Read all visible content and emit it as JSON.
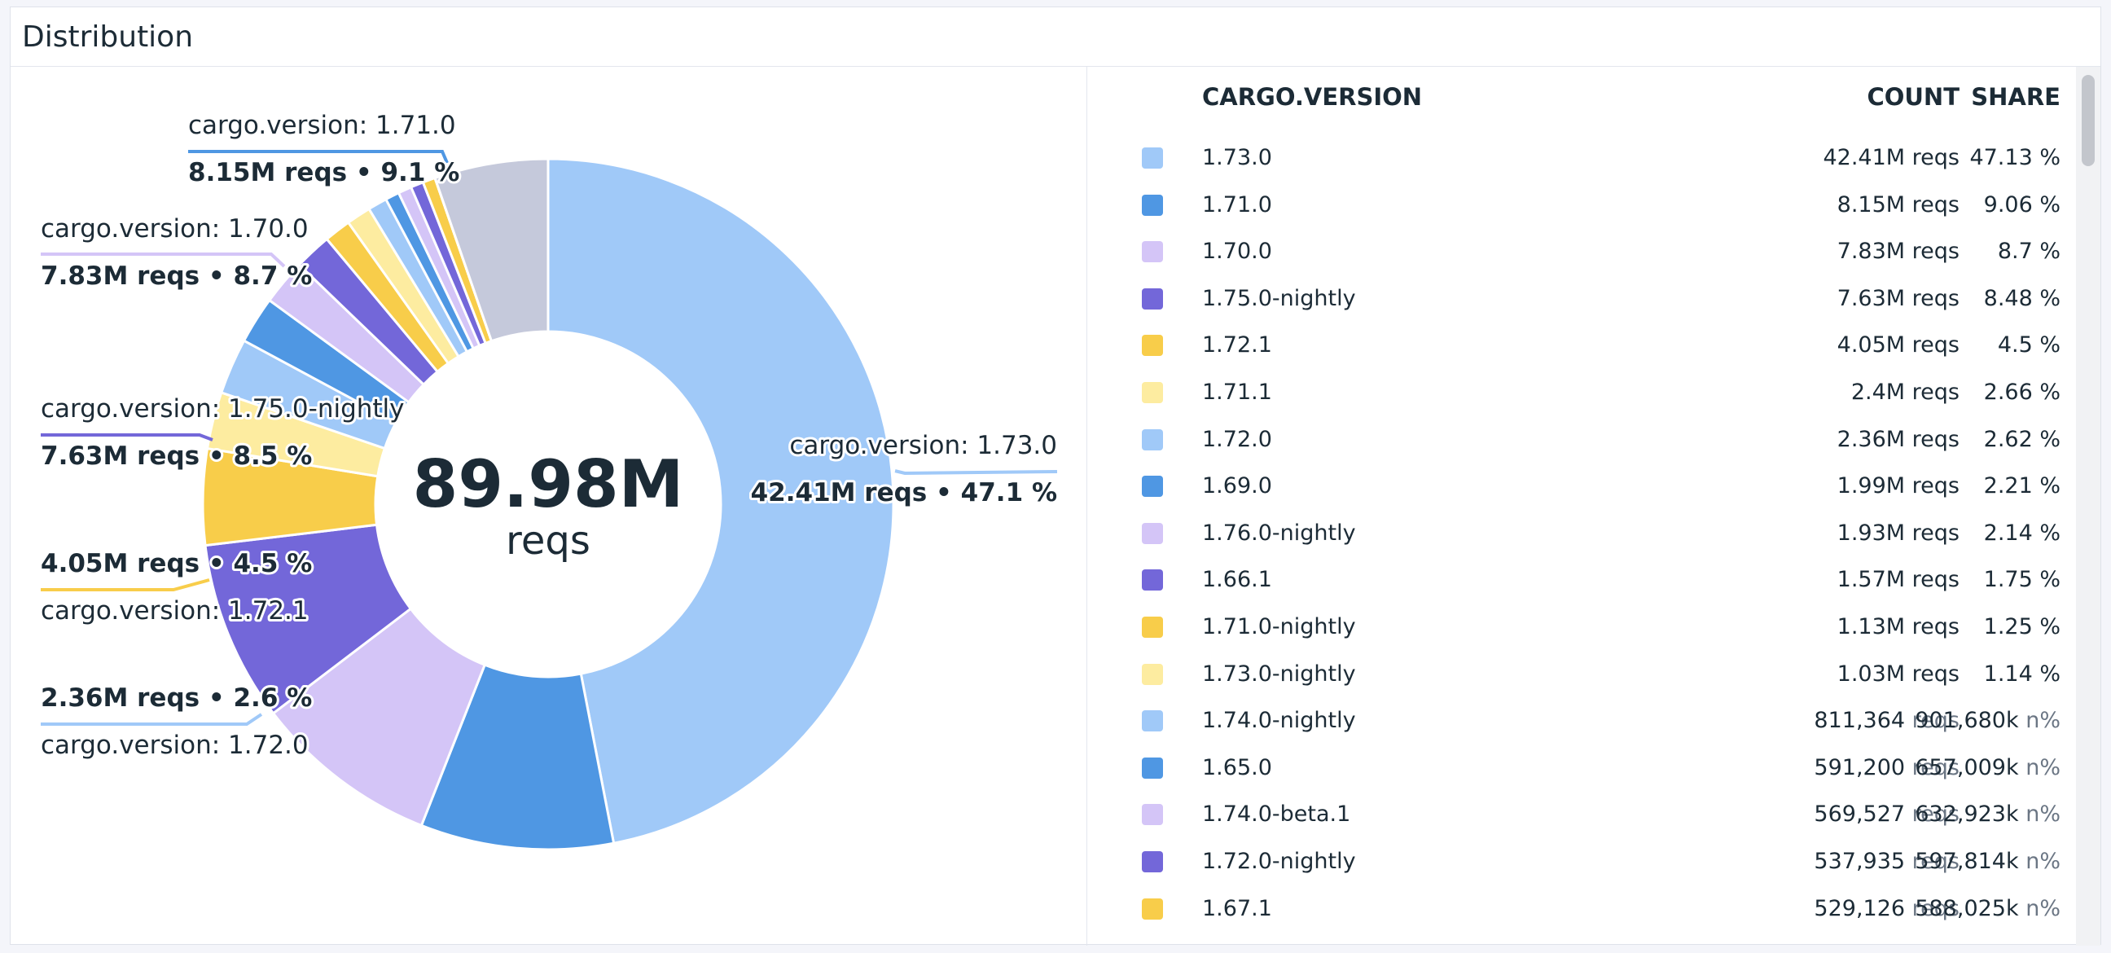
{
  "panel": {
    "title": "Distribution"
  },
  "center": {
    "value": "89.98M",
    "unit": "reqs"
  },
  "legend": {
    "headers": {
      "version": "CARGO.VERSION",
      "count": "COUNT",
      "share": "SHARE"
    }
  },
  "chart_data": {
    "type": "pie",
    "style": "donut",
    "total": 89.98,
    "total_unit": "M reqs",
    "categories": [
      "1.73.0",
      "1.71.0",
      "1.70.0",
      "1.75.0-nightly",
      "1.72.1",
      "1.71.1",
      "1.72.0",
      "1.69.0",
      "1.76.0-nightly",
      "1.66.1",
      "1.71.0-nightly",
      "1.73.0-nightly",
      "1.74.0-nightly",
      "1.65.0",
      "1.74.0-beta.1",
      "1.72.0-nightly",
      "1.67.1"
    ],
    "values": [
      42.41,
      8.15,
      7.83,
      7.63,
      4.05,
      2.4,
      2.36,
      1.99,
      1.93,
      1.57,
      1.13,
      1.03,
      0.811364,
      0.5912,
      0.569527,
      0.537935,
      0.529126
    ],
    "other_value": 4.8,
    "rows": [
      {
        "version": "1.73.0",
        "count": "42.41M",
        "count_unit": "reqs",
        "share": "47.13 %",
        "share_unit": "",
        "color": "#a0c9f8"
      },
      {
        "version": "1.71.0",
        "count": "8.15M",
        "count_unit": "reqs",
        "share": "9.06 %",
        "share_unit": "",
        "color": "#4f97e3"
      },
      {
        "version": "1.70.0",
        "count": "7.83M",
        "count_unit": "reqs",
        "share": "8.7 %",
        "share_unit": "",
        "color": "#d4c5f7"
      },
      {
        "version": "1.75.0-nightly",
        "count": "7.63M",
        "count_unit": "reqs",
        "share": "8.48 %",
        "share_unit": "",
        "color": "#7367d9"
      },
      {
        "version": "1.72.1",
        "count": "4.05M",
        "count_unit": "reqs",
        "share": "4.5 %",
        "share_unit": "",
        "color": "#f8cd4a"
      },
      {
        "version": "1.71.1",
        "count": "2.4M",
        "count_unit": "reqs",
        "share": "2.66 %",
        "share_unit": "",
        "color": "#fdeca0"
      },
      {
        "version": "1.72.0",
        "count": "2.36M",
        "count_unit": "reqs",
        "share": "2.62 %",
        "share_unit": "",
        "color": "#a0c9f8"
      },
      {
        "version": "1.69.0",
        "count": "1.99M",
        "count_unit": "reqs",
        "share": "2.21 %",
        "share_unit": "",
        "color": "#4f97e3"
      },
      {
        "version": "1.76.0-nightly",
        "count": "1.93M",
        "count_unit": "reqs",
        "share": "2.14 %",
        "share_unit": "",
        "color": "#d4c5f7"
      },
      {
        "version": "1.66.1",
        "count": "1.57M",
        "count_unit": "reqs",
        "share": "1.75 %",
        "share_unit": "",
        "color": "#7367d9"
      },
      {
        "version": "1.71.0-nightly",
        "count": "1.13M",
        "count_unit": "reqs",
        "share": "1.25 %",
        "share_unit": "",
        "color": "#f8cd4a"
      },
      {
        "version": "1.73.0-nightly",
        "count": "1.03M",
        "count_unit": "reqs",
        "share": "1.14 %",
        "share_unit": "",
        "color": "#fdeca0"
      },
      {
        "version": "1.74.0-nightly",
        "count": "811,364",
        "count_unit": "reqs",
        "share": "901,680k",
        "share_unit": "n%",
        "color": "#a0c9f8"
      },
      {
        "version": "1.65.0",
        "count": "591,200",
        "count_unit": "reqs",
        "share": "657,009k",
        "share_unit": "n%",
        "color": "#4f97e3"
      },
      {
        "version": "1.74.0-beta.1",
        "count": "569,527",
        "count_unit": "reqs",
        "share": "632,923k",
        "share_unit": "n%",
        "color": "#d4c5f7"
      },
      {
        "version": "1.72.0-nightly",
        "count": "537,935",
        "count_unit": "reqs",
        "share": "597,814k",
        "share_unit": "n%",
        "color": "#7367d9"
      },
      {
        "version": "1.67.1",
        "count": "529,126",
        "count_unit": "reqs",
        "share": "588,025k",
        "share_unit": "n%",
        "color": "#f8cd4a"
      }
    ],
    "small_slice_colors": [
      "#fdeca0",
      "#a0c9f8",
      "#4f97e3",
      "#d4c5f7",
      "#7367d9",
      "#f8cd4a"
    ],
    "other_color": "#c5c9db",
    "callouts": [
      {
        "name": "cargo.version: 1.71.0",
        "value": "8.15M reqs • 9.1 %"
      },
      {
        "name": "cargo.version: 1.70.0",
        "value": "7.83M reqs • 8.7 %"
      },
      {
        "name": "cargo.version: 1.75.0-nightly",
        "value": "7.63M reqs • 8.5 %"
      },
      {
        "name": "cargo.version: 1.72.1",
        "value": "4.05M reqs • 4.5 %"
      },
      {
        "name": "cargo.version: 1.72.0",
        "value": "2.36M reqs • 2.6 %"
      },
      {
        "name": "cargo.version: 1.73.0",
        "value": "42.41M reqs • 47.1 %"
      }
    ]
  }
}
